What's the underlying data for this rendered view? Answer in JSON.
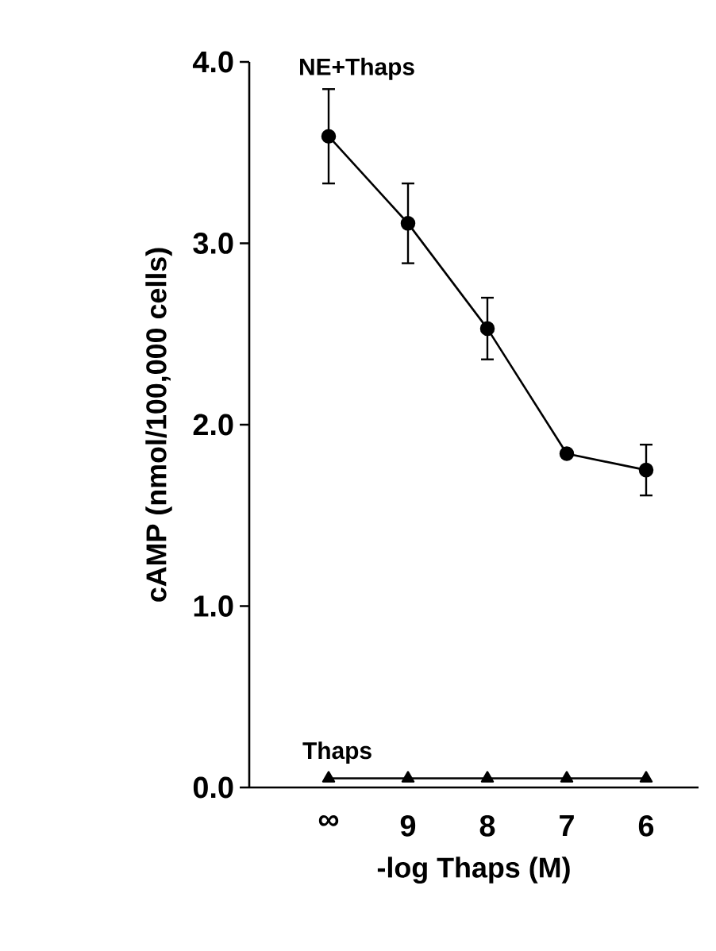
{
  "chart_data": {
    "type": "line",
    "xlabel": "-log Thaps (M)",
    "ylabel": "cAMP (nmol/100,000 cells)",
    "categories": [
      "∞",
      "9",
      "8",
      "7",
      "6"
    ],
    "ylim": [
      0,
      4
    ],
    "yticks": [
      {
        "value": 0,
        "label": "0.0"
      },
      {
        "value": 1,
        "label": "1.0"
      },
      {
        "value": 2,
        "label": "2.0"
      },
      {
        "value": 3,
        "label": "3.0"
      },
      {
        "value": 4,
        "label": "4.0"
      }
    ],
    "line_style": "solid",
    "series": [
      {
        "name": "NE+Thaps",
        "color": "#000000",
        "marker": "circle",
        "values": [
          3.59,
          3.11,
          2.53,
          1.84,
          1.75
        ],
        "errors": [
          0.26,
          0.22,
          0.17,
          null,
          0.14
        ]
      },
      {
        "name": "Thaps",
        "color": "#000000",
        "marker": "triangle",
        "values": [
          0.05,
          0.05,
          0.05,
          0.05,
          0.05
        ]
      }
    ]
  }
}
